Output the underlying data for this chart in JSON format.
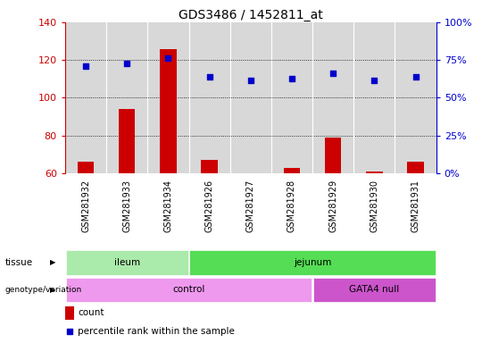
{
  "title": "GDS3486 / 1452811_at",
  "samples": [
    "GSM281932",
    "GSM281933",
    "GSM281934",
    "GSM281926",
    "GSM281927",
    "GSM281928",
    "GSM281929",
    "GSM281930",
    "GSM281931"
  ],
  "counts": [
    66,
    94,
    126,
    67,
    60,
    63,
    79,
    61,
    66
  ],
  "percentile_ranks": [
    117,
    118,
    121,
    111,
    109,
    110,
    113,
    109,
    111
  ],
  "ylim_left": [
    60,
    140
  ],
  "ylim_right": [
    0,
    100
  ],
  "yticks_left": [
    60,
    80,
    100,
    120,
    140
  ],
  "yticks_right": [
    0,
    25,
    50,
    75,
    100
  ],
  "yticklabels_right": [
    "0%",
    "25%",
    "50%",
    "75%",
    "100%"
  ],
  "bar_color": "#cc0000",
  "dot_color": "#0000cc",
  "bar_width": 0.4,
  "tissue_labels": [
    {
      "label": "ileum",
      "start": 0,
      "end": 2,
      "color": "#aaeaaa"
    },
    {
      "label": "jejunum",
      "start": 3,
      "end": 8,
      "color": "#55dd55"
    }
  ],
  "genotype_labels": [
    {
      "label": "control",
      "start": 0,
      "end": 5,
      "color": "#ee99ee"
    },
    {
      "label": "GATA4 null",
      "start": 6,
      "end": 8,
      "color": "#cc55cc"
    }
  ],
  "legend_count_label": "count",
  "legend_pct_label": "percentile rank within the sample",
  "grid_color": "#000000",
  "bg_color": "#ffffff",
  "plot_bg_color": "#d8d8d8",
  "title_fontsize": 10,
  "axis_fontsize": 8,
  "tick_label_fontsize": 7
}
